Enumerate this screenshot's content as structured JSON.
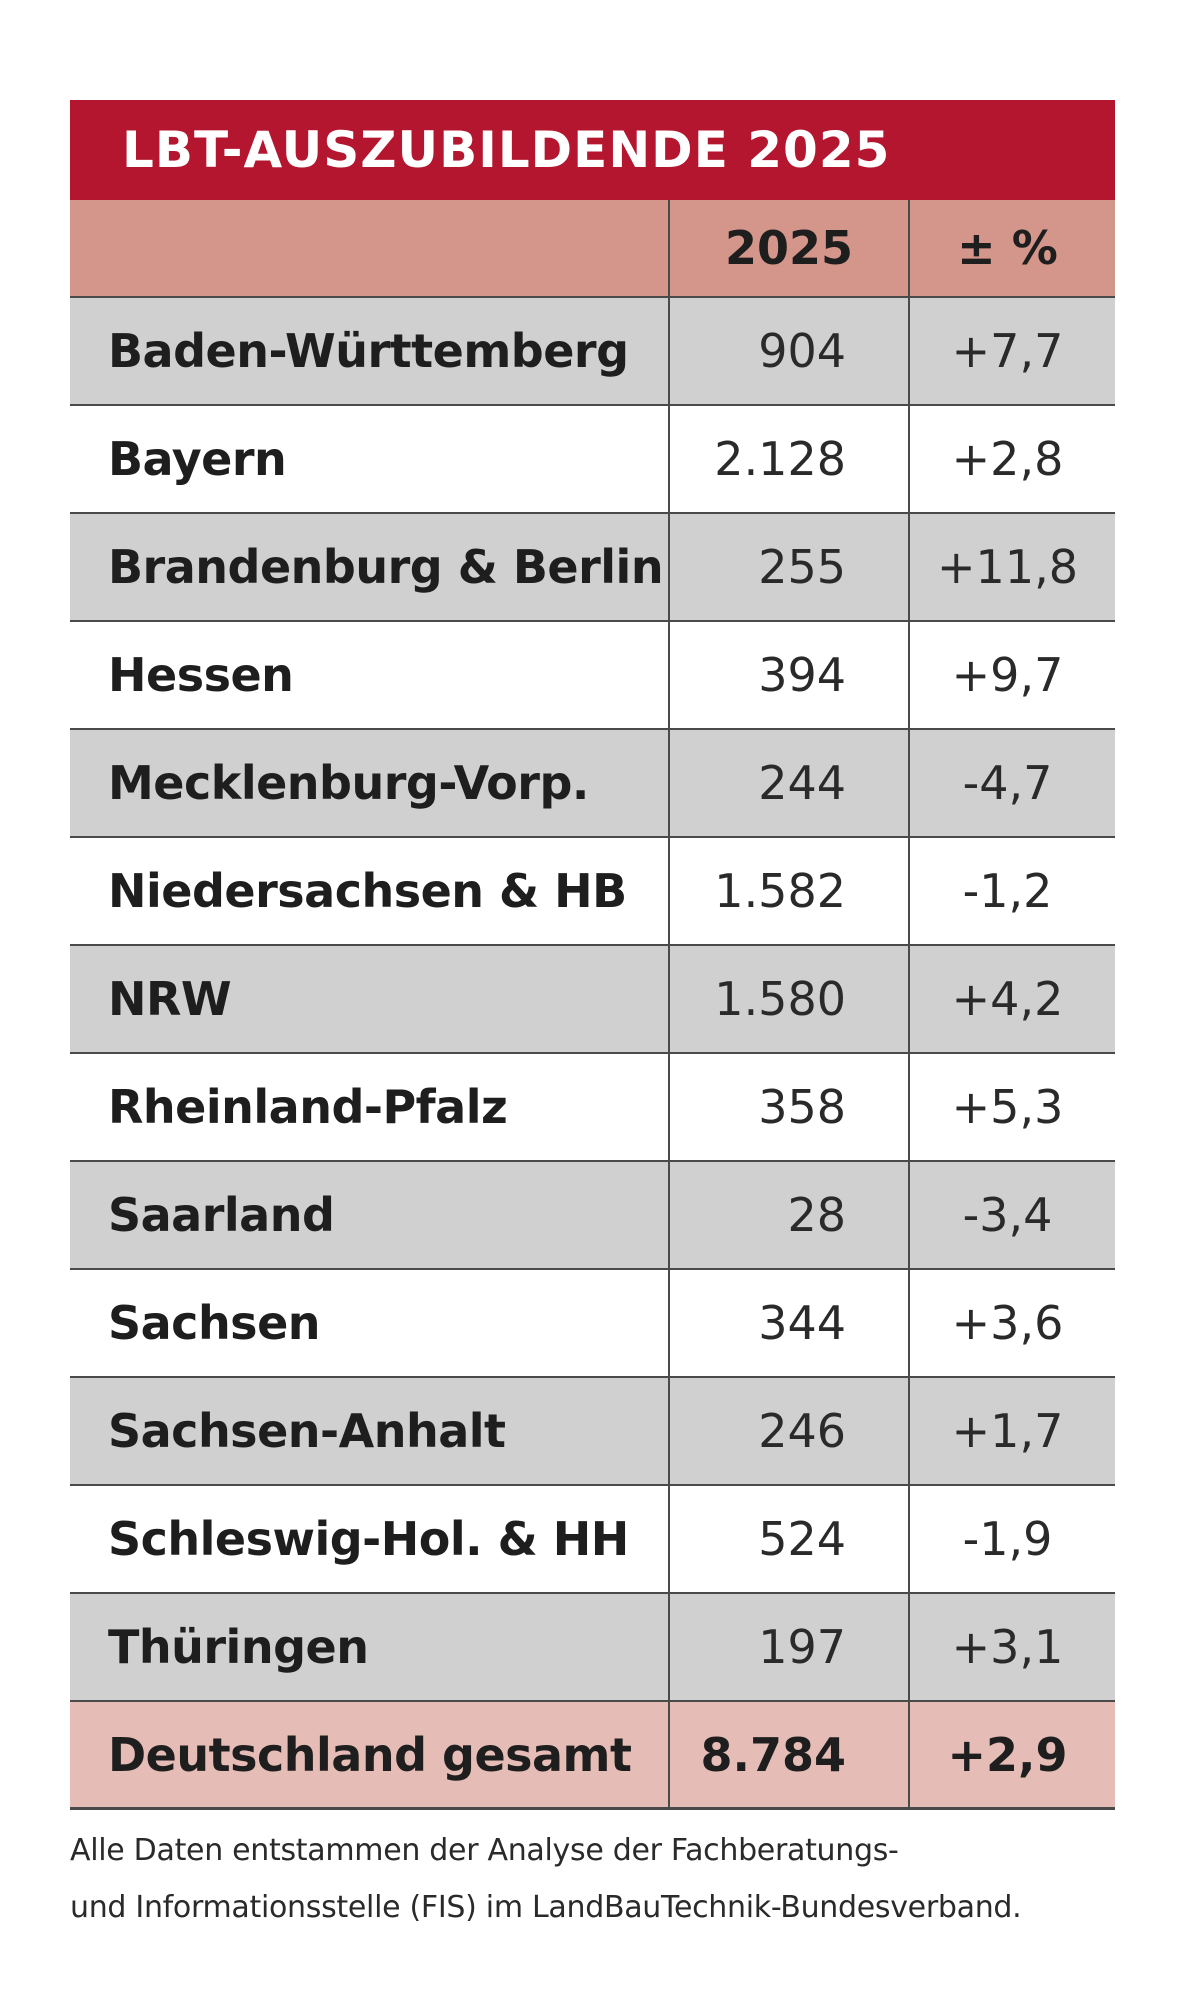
{
  "table": {
    "title": "LBT-AUSZUBILDENDE 2025",
    "header": {
      "name": "",
      "value": "2025",
      "change": "± %"
    },
    "rows": [
      {
        "name": "Baden-Württemberg",
        "value": "904",
        "change": "+7,7"
      },
      {
        "name": "Bayern",
        "value": "2.128",
        "change": "+2,8"
      },
      {
        "name": "Brandenburg & Berlin",
        "value": "255",
        "change": "+11,8"
      },
      {
        "name": "Hessen",
        "value": "394",
        "change": "+9,7"
      },
      {
        "name": "Mecklenburg-Vorp.",
        "value": "244",
        "change": "-4,7"
      },
      {
        "name": "Niedersachsen & HB",
        "value": "1.582",
        "change": "-1,2"
      },
      {
        "name": "NRW",
        "value": "1.580",
        "change": "+4,2"
      },
      {
        "name": "Rheinland-Pfalz",
        "value": "358",
        "change": "+5,3"
      },
      {
        "name": "Saarland",
        "value": "28",
        "change": "-3,4"
      },
      {
        "name": "Sachsen",
        "value": "344",
        "change": "+3,6"
      },
      {
        "name": "Sachsen-Anhalt",
        "value": "246",
        "change": "+1,7"
      },
      {
        "name": "Schleswig-Hol. & HH",
        "value": "524",
        "change": "-1,9"
      },
      {
        "name": "Thüringen",
        "value": "197",
        "change": "+3,1"
      }
    ],
    "total": {
      "name": "Deutschland gesamt",
      "value": "8.784",
      "change": "+2,9"
    }
  },
  "footnote": {
    "line1": "Alle Daten entstammen der Analyse der Fachberatungs-",
    "line2": "und Informationsstelle (FIS) im LandBauTechnik-Bundesverband."
  },
  "colors": {
    "title_bg": "#b5162f",
    "header_bg": "#d4968a",
    "row_odd_bg": "#d0d0d0",
    "row_even_bg": "#ffffff",
    "total_bg": "#e6bdb6"
  }
}
